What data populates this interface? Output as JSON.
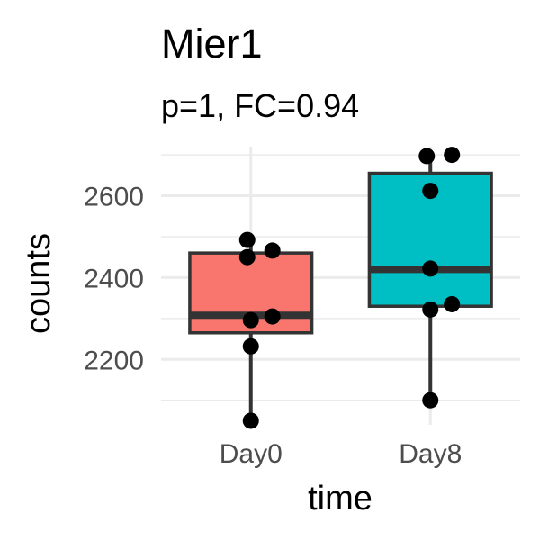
{
  "chart_data": {
    "type": "boxplot",
    "title": "Mier1",
    "subtitle": "p=1, FC=0.94",
    "xlabel": "time",
    "ylabel": "counts",
    "categories": [
      "Day0",
      "Day8"
    ],
    "y_ticks": [
      2200,
      2400,
      2600
    ],
    "y_tick_labels": [
      "2200",
      "2400",
      "2600"
    ],
    "ylim": [
      2040,
      2720
    ],
    "grid": true,
    "legend": "none",
    "boxes": [
      {
        "category": "Day0",
        "color": "#F8766D",
        "whisker_low": 2050,
        "q1": 2265,
        "median": 2308,
        "q3": 2460,
        "whisker_high": 2492,
        "points": [
          2050,
          2232,
          2296,
          2305,
          2450,
          2466,
          2492
        ]
      },
      {
        "category": "Day8",
        "color": "#00BFC4",
        "whisker_low": 2100,
        "q1": 2330,
        "median": 2420,
        "q3": 2655,
        "whisker_high": 2700,
        "points": [
          2100,
          2322,
          2335,
          2422,
          2612,
          2697,
          2700
        ]
      }
    ]
  }
}
